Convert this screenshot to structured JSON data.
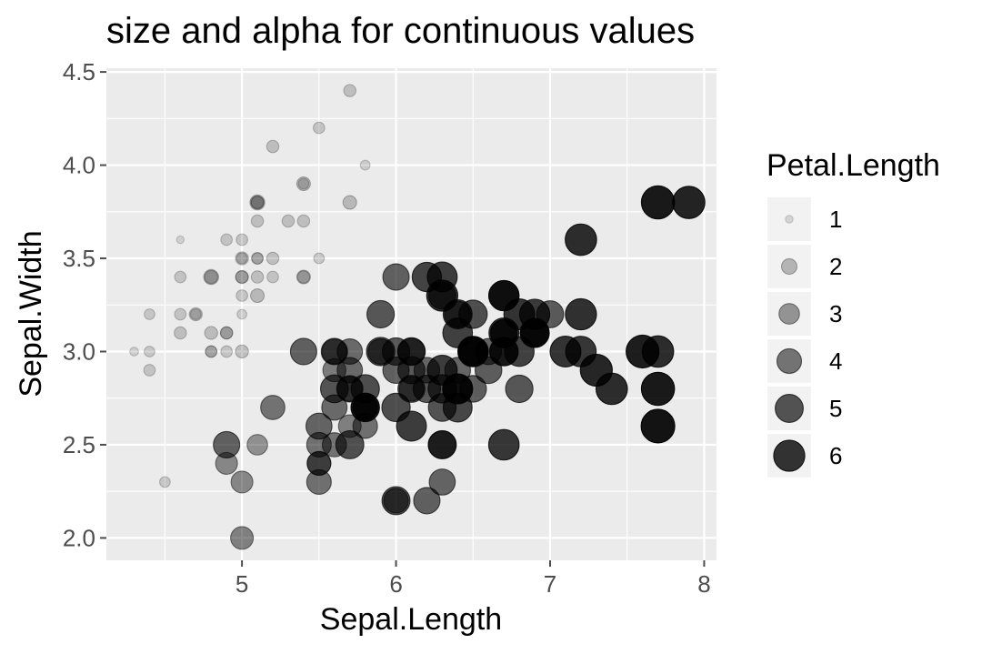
{
  "chart_data": {
    "type": "scatter",
    "title": "size and alpha for continuous values",
    "xlabel": "Sepal.Length",
    "ylabel": "Sepal.Width",
    "xlim": [
      4.12,
      8.08
    ],
    "ylim": [
      1.88,
      4.52
    ],
    "x_ticks": [
      5,
      6,
      7,
      8
    ],
    "y_ticks": [
      2.0,
      2.5,
      3.0,
      3.5,
      4.0,
      4.5
    ],
    "x_tick_labels": [
      "5",
      "6",
      "7",
      "8"
    ],
    "y_tick_labels": [
      "2.0",
      "2.5",
      "3.0",
      "3.5",
      "4.0",
      "4.5"
    ],
    "grid": true,
    "legend": {
      "title": "Petal.Length",
      "placement": "right",
      "entries": [
        {
          "label": "1",
          "value": 1
        },
        {
          "label": "2",
          "value": 2
        },
        {
          "label": "3",
          "value": 3
        },
        {
          "label": "4",
          "value": 4
        },
        {
          "label": "5",
          "value": 5
        },
        {
          "label": "6",
          "value": 6
        }
      ]
    },
    "size_range_value": [
      1.0,
      6.9
    ],
    "colors": {
      "point": "#000000",
      "panel": "#ebebeb",
      "grid": "#ffffff",
      "tick": "#4d4d4d"
    },
    "series": [
      {
        "x": [
          5.1,
          4.9,
          4.7,
          4.6,
          5.0,
          5.4,
          4.6,
          5.0,
          4.4,
          4.9,
          5.4,
          4.8,
          4.8,
          4.3,
          5.8,
          5.7,
          5.4,
          5.1,
          5.7,
          5.1,
          5.4,
          5.1,
          4.6,
          5.1,
          4.8,
          5.0,
          5.0,
          5.2,
          5.2,
          4.7,
          4.8,
          5.4,
          5.2,
          5.5,
          4.9,
          5.0,
          5.5,
          4.9,
          4.4,
          5.1,
          5.0,
          4.5,
          4.4,
          5.0,
          5.1,
          4.8,
          5.1,
          4.6,
          5.3,
          5.0,
          7.0,
          6.4,
          6.9,
          5.5,
          6.5,
          5.7,
          6.3,
          4.9,
          6.6,
          5.2,
          5.0,
          5.9,
          6.0,
          6.1,
          5.6,
          6.7,
          5.6,
          5.8,
          6.2,
          5.6,
          5.9,
          6.1,
          6.3,
          6.1,
          6.4,
          6.6,
          6.8,
          6.7,
          6.0,
          5.7,
          5.5,
          5.5,
          5.8,
          6.0,
          5.4,
          6.0,
          6.7,
          6.3,
          5.6,
          5.5,
          5.5,
          6.1,
          5.8,
          5.0,
          5.6,
          5.7,
          5.7,
          6.2,
          5.1,
          5.7,
          6.3,
          5.8,
          7.1,
          6.3,
          6.5,
          7.6,
          4.9,
          7.3,
          6.7,
          7.2,
          6.5,
          6.4,
          6.8,
          5.7,
          5.8,
          6.4,
          6.5,
          7.7,
          7.7,
          6.0,
          6.9,
          5.6,
          7.7,
          6.3,
          6.7,
          7.2,
          6.2,
          6.1,
          6.4,
          7.2,
          7.4,
          7.9,
          6.4,
          6.3,
          6.1,
          7.7,
          6.3,
          6.4,
          6.0,
          6.9,
          6.7,
          6.9,
          5.8,
          6.8,
          6.7,
          6.7,
          6.3,
          6.5,
          6.2,
          5.9
        ],
        "y": [
          3.5,
          3.0,
          3.2,
          3.1,
          3.6,
          3.9,
          3.4,
          3.4,
          2.9,
          3.1,
          3.7,
          3.4,
          3.0,
          3.0,
          4.0,
          4.4,
          3.9,
          3.5,
          3.8,
          3.8,
          3.4,
          3.7,
          3.6,
          3.3,
          3.4,
          3.0,
          3.4,
          3.5,
          3.4,
          3.2,
          3.1,
          3.4,
          4.1,
          4.2,
          3.1,
          3.2,
          3.5,
          3.6,
          3.0,
          3.4,
          3.5,
          2.3,
          3.2,
          3.5,
          3.8,
          3.0,
          3.8,
          3.2,
          3.7,
          3.3,
          3.2,
          3.2,
          3.1,
          2.3,
          2.8,
          2.8,
          3.3,
          2.4,
          2.9,
          2.7,
          2.0,
          3.0,
          2.2,
          2.9,
          2.9,
          3.1,
          3.0,
          2.7,
          2.2,
          2.5,
          3.2,
          2.8,
          2.5,
          2.8,
          2.9,
          3.0,
          2.8,
          3.0,
          2.9,
          2.6,
          2.4,
          2.4,
          2.7,
          2.7,
          3.0,
          3.4,
          3.1,
          2.3,
          3.0,
          2.5,
          2.6,
          3.0,
          2.6,
          2.3,
          2.7,
          3.0,
          2.9,
          2.9,
          2.5,
          2.8,
          3.3,
          2.7,
          3.0,
          2.9,
          3.0,
          3.0,
          2.5,
          2.9,
          2.5,
          3.6,
          3.2,
          2.7,
          3.0,
          2.5,
          2.8,
          3.2,
          3.0,
          3.8,
          2.6,
          2.2,
          3.2,
          2.8,
          2.8,
          2.7,
          3.3,
          3.2,
          2.8,
          3.0,
          2.8,
          3.0,
          2.8,
          3.8,
          2.8,
          2.8,
          2.6,
          3.0,
          3.4,
          3.1,
          3.0,
          3.1,
          3.1,
          3.1,
          2.7,
          3.2,
          3.3,
          3.0,
          2.5,
          3.0,
          3.4,
          3.0
        ],
        "size": [
          1.4,
          1.4,
          1.3,
          1.5,
          1.4,
          1.7,
          1.4,
          1.5,
          1.4,
          1.5,
          1.5,
          1.6,
          1.4,
          1.1,
          1.2,
          1.5,
          1.3,
          1.4,
          1.7,
          1.5,
          1.7,
          1.5,
          1.0,
          1.7,
          1.9,
          1.6,
          1.6,
          1.5,
          1.4,
          1.6,
          1.6,
          1.5,
          1.5,
          1.4,
          1.5,
          1.2,
          1.3,
          1.4,
          1.3,
          1.5,
          1.3,
          1.3,
          1.3,
          1.6,
          1.9,
          1.4,
          1.6,
          1.4,
          1.5,
          1.4,
          4.7,
          4.5,
          4.9,
          4.0,
          4.6,
          4.5,
          4.7,
          3.3,
          4.6,
          3.9,
          3.5,
          4.2,
          4.0,
          4.7,
          3.6,
          4.4,
          4.5,
          4.1,
          4.5,
          3.9,
          4.8,
          4.0,
          4.9,
          4.7,
          4.3,
          4.4,
          4.8,
          5.0,
          4.5,
          3.5,
          3.8,
          3.7,
          3.9,
          5.1,
          4.5,
          4.5,
          4.7,
          4.4,
          4.1,
          4.0,
          4.4,
          4.6,
          4.0,
          3.3,
          4.2,
          4.2,
          4.2,
          4.3,
          3.0,
          4.1,
          6.0,
          5.1,
          5.9,
          5.6,
          5.8,
          6.6,
          4.5,
          6.3,
          5.8,
          6.1,
          5.1,
          5.3,
          5.5,
          5.0,
          5.1,
          5.3,
          5.5,
          6.7,
          6.9,
          5.0,
          5.7,
          4.9,
          6.7,
          4.9,
          5.7,
          6.0,
          4.8,
          4.9,
          5.6,
          5.8,
          6.1,
          6.4,
          5.6,
          5.1,
          5.6,
          6.1,
          5.6,
          5.5,
          4.8,
          5.4,
          5.6,
          5.1,
          5.1,
          5.9,
          5.7,
          5.2,
          5.0,
          5.2,
          5.4,
          5.1
        ]
      }
    ]
  }
}
